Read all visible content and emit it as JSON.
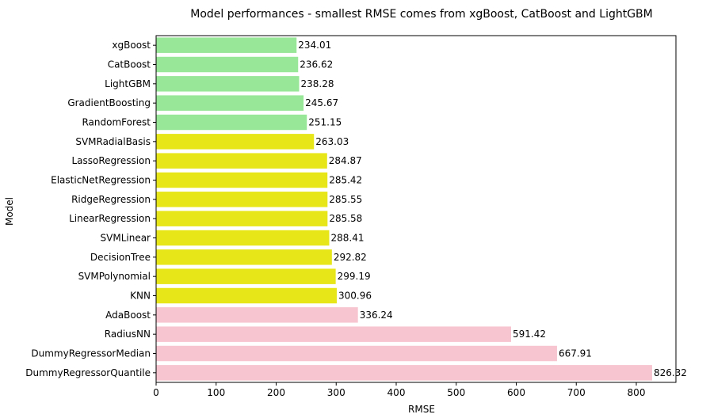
{
  "chart_data": {
    "type": "bar",
    "orientation": "horizontal",
    "title": "Model performances - smallest RMSE comes from xgBoost, CatBoost and LightGBM",
    "xlabel": "RMSE",
    "ylabel": "Model",
    "xlim": [
      0,
      866
    ],
    "xticks": [
      0,
      100,
      200,
      300,
      400,
      500,
      600,
      700,
      800
    ],
    "grid": false,
    "categories": [
      "xgBoost",
      "CatBoost",
      "LightGBM",
      "GradientBoosting",
      "RandomForest",
      "SVMRadialBasis",
      "LassoRegression",
      "ElasticNetRegression",
      "RidgeRegression",
      "LinearRegression",
      "SVMLinear",
      "DecisionTree",
      "SVMPolynomial",
      "KNN",
      "AdaBoost",
      "RadiusNN",
      "DummyRegressorMedian",
      "DummyRegressorQuantile"
    ],
    "values": [
      234.01,
      236.62,
      238.28,
      245.67,
      251.15,
      263.03,
      284.87,
      285.42,
      285.55,
      285.58,
      288.41,
      292.82,
      299.19,
      300.96,
      336.24,
      591.42,
      667.91,
      826.32
    ],
    "data_labels": [
      "234.01",
      "236.62",
      "238.28",
      "245.67",
      "251.15",
      "263.03",
      "284.87",
      "285.42",
      "285.55",
      "285.58",
      "288.41",
      "292.82",
      "299.19",
      "300.96",
      "336.24",
      "591.42",
      "667.91",
      "826.32"
    ],
    "bar_colors": [
      "#98e698",
      "#98e698",
      "#98e698",
      "#98e698",
      "#98e698",
      "#e6e619",
      "#e6e619",
      "#e6e619",
      "#e6e619",
      "#e6e619",
      "#e6e619",
      "#e6e619",
      "#e6e619",
      "#e6e619",
      "#f7c5d0",
      "#f7c5d0",
      "#f7c5d0",
      "#f7c5d0"
    ]
  }
}
